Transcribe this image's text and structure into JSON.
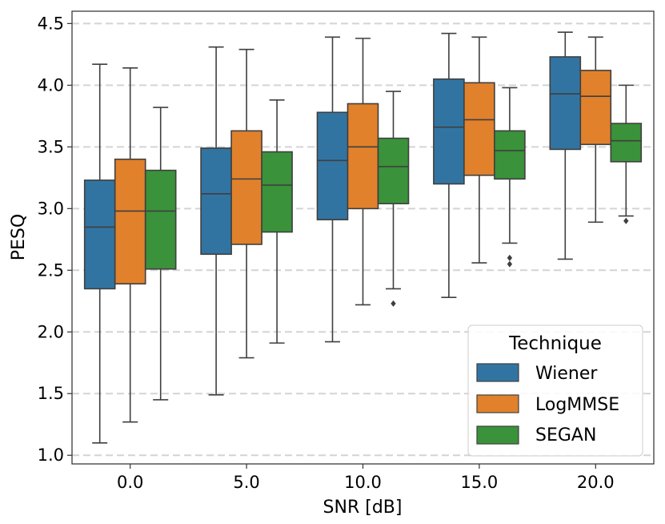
{
  "chart_data": {
    "type": "boxplot",
    "xlabel": "SNR [dB]",
    "ylabel": "PESQ",
    "categories": [
      "0.0",
      "5.0",
      "10.0",
      "15.0",
      "20.0"
    ],
    "ylim": [
      0.93,
      4.6
    ],
    "yticks": [
      "1.0",
      "1.5",
      "2.0",
      "2.5",
      "3.0",
      "3.5",
      "4.0",
      "4.5"
    ],
    "grid": "horizontal dashed",
    "legend": {
      "title": "Technique",
      "placement": "lower-right"
    },
    "series": [
      {
        "name": "Wiener",
        "color": "#3274a1",
        "boxes": [
          {
            "whislo": 1.1,
            "q1": 2.35,
            "med": 2.85,
            "q3": 3.23,
            "whishi": 4.17,
            "fliers": []
          },
          {
            "whislo": 1.49,
            "q1": 2.63,
            "med": 3.12,
            "q3": 3.49,
            "whishi": 4.31,
            "fliers": []
          },
          {
            "whislo": 1.92,
            "q1": 2.91,
            "med": 3.39,
            "q3": 3.78,
            "whishi": 4.39,
            "fliers": []
          },
          {
            "whislo": 2.28,
            "q1": 3.2,
            "med": 3.66,
            "q3": 4.05,
            "whishi": 4.42,
            "fliers": []
          },
          {
            "whislo": 2.59,
            "q1": 3.48,
            "med": 3.93,
            "q3": 4.23,
            "whishi": 4.43,
            "fliers": []
          }
        ]
      },
      {
        "name": "LogMMSE",
        "color": "#e1812c",
        "boxes": [
          {
            "whislo": 1.27,
            "q1": 2.39,
            "med": 2.98,
            "q3": 3.4,
            "whishi": 4.14,
            "fliers": []
          },
          {
            "whislo": 1.79,
            "q1": 2.71,
            "med": 3.24,
            "q3": 3.63,
            "whishi": 4.29,
            "fliers": []
          },
          {
            "whislo": 2.22,
            "q1": 3.0,
            "med": 3.5,
            "q3": 3.85,
            "whishi": 4.38,
            "fliers": []
          },
          {
            "whislo": 2.56,
            "q1": 3.27,
            "med": 3.72,
            "q3": 4.02,
            "whishi": 4.39,
            "fliers": []
          },
          {
            "whislo": 2.89,
            "q1": 3.52,
            "med": 3.91,
            "q3": 4.12,
            "whishi": 4.39,
            "fliers": []
          }
        ]
      },
      {
        "name": "SEGAN",
        "color": "#3a923a",
        "boxes": [
          {
            "whislo": 1.45,
            "q1": 2.51,
            "med": 2.98,
            "q3": 3.31,
            "whishi": 3.82,
            "fliers": []
          },
          {
            "whislo": 1.91,
            "q1": 2.81,
            "med": 3.19,
            "q3": 3.46,
            "whishi": 3.88,
            "fliers": []
          },
          {
            "whislo": 2.35,
            "q1": 3.04,
            "med": 3.34,
            "q3": 3.57,
            "whishi": 3.95,
            "fliers": [
              2.23
            ]
          },
          {
            "whislo": 2.72,
            "q1": 3.24,
            "med": 3.47,
            "q3": 3.63,
            "whishi": 3.98,
            "fliers": [
              2.55,
              2.6
            ]
          },
          {
            "whislo": 2.94,
            "q1": 3.38,
            "med": 3.55,
            "q3": 3.69,
            "whishi": 4.0,
            "fliers": [
              2.9
            ]
          }
        ]
      }
    ]
  }
}
